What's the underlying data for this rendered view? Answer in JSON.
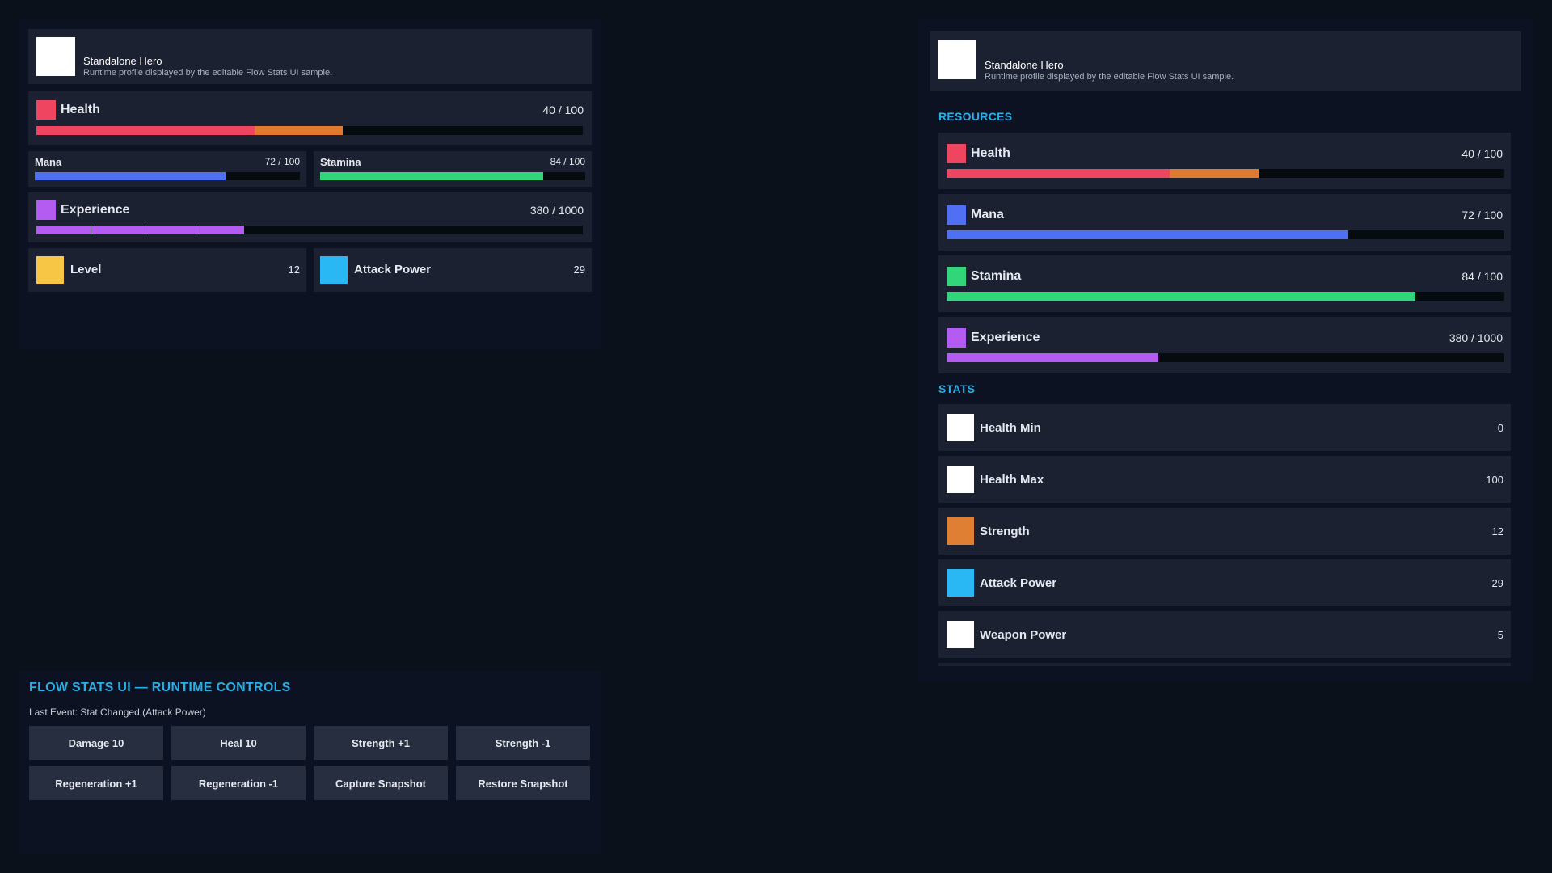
{
  "colors": {
    "health": "#ef4560",
    "health_pending": "#e07a2e",
    "mana": "#4f70f2",
    "stamina": "#32d67a",
    "experience": "#b45cf1",
    "level": "#f7c644",
    "attack_power": "#2ab8f5",
    "strength": "#df7f33",
    "white": "#ffffff",
    "accent": "#29aee6"
  },
  "left": {
    "profile": {
      "name": "Standalone Hero",
      "subtitle": "Runtime profile displayed by the editable Flow Stats UI sample.",
      "avatar_icon": "avatar-placeholder"
    },
    "health": {
      "label": "Health",
      "value": "40 / 100",
      "fraction": 0.4,
      "pending_fraction": 0.56
    },
    "mana": {
      "label": "Mana",
      "value": "72 / 100",
      "fraction": 0.72
    },
    "stamina": {
      "label": "Stamina",
      "value": "84 / 100",
      "fraction": 0.84
    },
    "experience": {
      "label": "Experience",
      "value": "380 / 1000",
      "fraction": 0.38,
      "segments": 10
    },
    "level": {
      "label": "Level",
      "value": "12"
    },
    "attack_power": {
      "label": "Attack Power",
      "value": "29"
    }
  },
  "controls": {
    "title": "FLOW STATS UI — RUNTIME CONTROLS",
    "last_event": "Last Event: Stat Changed (Attack Power)",
    "buttons": [
      "Damage 10",
      "Heal 10",
      "Strength +1",
      "Strength -1",
      "Regeneration +1",
      "Regeneration -1",
      "Capture Snapshot",
      "Restore Snapshot"
    ]
  },
  "right": {
    "profile": {
      "name": "Standalone Hero",
      "subtitle": "Runtime profile displayed by the editable Flow Stats UI sample."
    },
    "resources_title": "RESOURCES",
    "resources": [
      {
        "label": "Health",
        "value": "40 / 100",
        "fraction": 0.4,
        "pending_fraction": 0.56,
        "color": "#ef4560"
      },
      {
        "label": "Mana",
        "value": "72 / 100",
        "fraction": 0.72,
        "color": "#4f70f2"
      },
      {
        "label": "Stamina",
        "value": "84 / 100",
        "fraction": 0.84,
        "color": "#32d67a"
      },
      {
        "label": "Experience",
        "value": "380 / 1000",
        "fraction": 0.38,
        "color": "#b45cf1"
      }
    ],
    "stats_title": "STATS",
    "stats": [
      {
        "label": "Health Min",
        "value": "0",
        "color": "#ffffff"
      },
      {
        "label": "Health Max",
        "value": "100",
        "color": "#ffffff"
      },
      {
        "label": "Strength",
        "value": "12",
        "color": "#df7f33"
      },
      {
        "label": "Attack Power",
        "value": "29",
        "color": "#2ab8f5"
      },
      {
        "label": "Weapon Power",
        "value": "5",
        "color": "#ffffff"
      }
    ]
  }
}
